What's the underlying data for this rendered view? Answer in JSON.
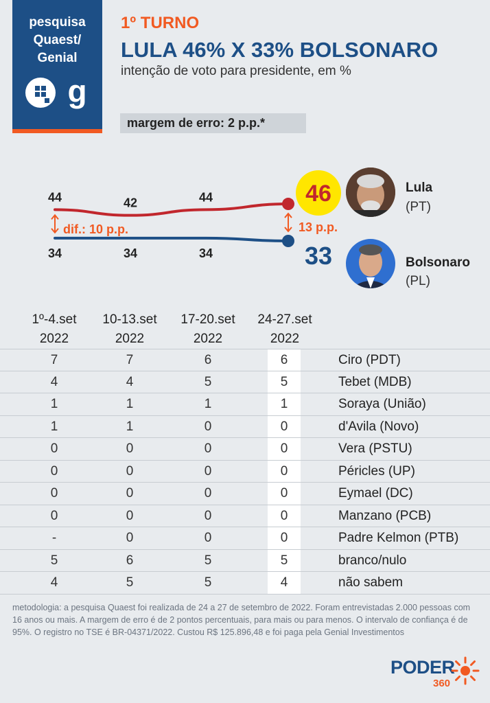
{
  "logo": {
    "lines": [
      "pesquisa",
      "Quaest/",
      "Genial"
    ],
    "icons": [
      "quaest-q-icon",
      "genial-g-icon"
    ]
  },
  "header": {
    "round": "1º TURNO",
    "title": "LULA 46% X 33% BOLSONARO",
    "subtitle": "intenção de voto para presidente, em %",
    "margin": "margem de erro: 2 p.p.*"
  },
  "colors": {
    "lula": "#c1272d",
    "bolsonaro": "#1d4f86",
    "accent": "#f15a22",
    "highlight_circle": "#ffe600"
  },
  "chart_data": {
    "type": "line",
    "x": [
      "1º-4.set 2022",
      "10-13.set 2022",
      "17-20.set 2022",
      "24-27.set 2022"
    ],
    "series": [
      {
        "name": "Lula",
        "values": [
          44,
          42,
          44,
          46
        ],
        "labels": [
          "44",
          "42",
          "44",
          "46"
        ]
      },
      {
        "name": "Bolsonaro",
        "values": [
          34,
          34,
          34,
          33
        ],
        "labels": [
          "34",
          "34",
          "34",
          "33"
        ]
      }
    ],
    "annotations": [
      "dif.: 10 p.p.",
      "13 p.p."
    ]
  },
  "candidates": [
    {
      "name": "Lula",
      "party": "(PT)",
      "photo": "lula-photo"
    },
    {
      "name": "Bolsonaro",
      "party": "(PL)",
      "photo": "bolsonaro-photo"
    }
  ],
  "table": {
    "headers": [
      {
        "line1": "1º-4.set",
        "line2": "2022"
      },
      {
        "line1": "10-13.set",
        "line2": "2022"
      },
      {
        "line1": "17-20.set",
        "line2": "2022"
      },
      {
        "line1": "24-27.set",
        "line2": "2022"
      }
    ],
    "rows": [
      {
        "values": [
          "7",
          "7",
          "6",
          "6"
        ],
        "name": "Ciro (PDT)"
      },
      {
        "values": [
          "4",
          "4",
          "5",
          "5"
        ],
        "name": "Tebet (MDB)"
      },
      {
        "values": [
          "1",
          "1",
          "1",
          "1"
        ],
        "name": "Soraya (União)"
      },
      {
        "values": [
          "1",
          "1",
          "0",
          "0"
        ],
        "name": "d'Avila (Novo)"
      },
      {
        "values": [
          "0",
          "0",
          "0",
          "0"
        ],
        "name": "Vera (PSTU)"
      },
      {
        "values": [
          "0",
          "0",
          "0",
          "0"
        ],
        "name": "Péricles (UP)"
      },
      {
        "values": [
          "0",
          "0",
          "0",
          "0"
        ],
        "name": "Eymael (DC)"
      },
      {
        "values": [
          "0",
          "0",
          "0",
          "0"
        ],
        "name": "Manzano (PCB)"
      },
      {
        "values": [
          "-",
          "0",
          "0",
          "0"
        ],
        "name": "Padre Kelmon (PTB)"
      },
      {
        "values": [
          "5",
          "6",
          "5",
          "5"
        ],
        "name": "branco/nulo"
      },
      {
        "values": [
          "4",
          "5",
          "5",
          "4"
        ],
        "name": "não sabem"
      }
    ]
  },
  "footer": {
    "methodology": "metodologia: a pesquisa Quaest foi realizada de 24 a 27 de setembro de 2022. Foram entrevistadas 2.000 pessoas com 16 anos ou mais. A margem de erro é de 2 pontos percentuais, para mais ou para menos. O intervalo de confiança é de 95%. O registro no TSE é BR-04371/2022. Custou R$ 125.896,48 e foi paga pela Genial Investimentos",
    "brand_word": "PODER",
    "brand_num": "360"
  }
}
